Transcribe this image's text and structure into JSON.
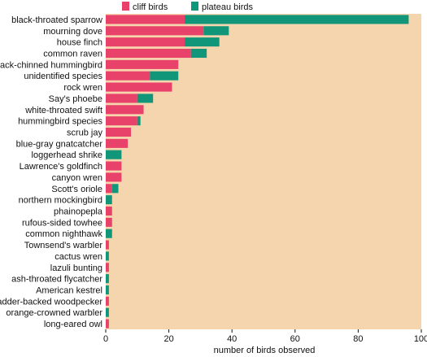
{
  "chart_data": {
    "type": "bar",
    "orientation": "horizontal",
    "stacked": true,
    "xlabel": "number of birds observed",
    "xlim": [
      0,
      100
    ],
    "xticks": [
      0,
      20,
      40,
      60,
      80,
      100
    ],
    "grid": false,
    "legend_position": "top",
    "categories": [
      "black-throated sparrow",
      "mourning dove",
      "house finch",
      "common raven",
      "black-chinned hummingbird",
      "unidentified species",
      "rock wren",
      "Say's phoebe",
      "white-throated swift",
      "hummingbird species",
      "scrub jay",
      "blue-gray gnatcatcher",
      "loggerhead shrike",
      "Lawrence's goldfinch",
      "canyon wren",
      "Scott's oriole",
      "northern mockingbird",
      "phainopepla",
      "rufous-sided towhee",
      "common nighthawk",
      "Townsend's warbler",
      "cactus wren",
      "lazuli bunting",
      "ash-throated flycatcher",
      "American kestrel",
      "ladder-backed woodpecker",
      "orange-crowned warbler",
      "long-eared owl"
    ],
    "series": [
      {
        "name": "cliff birds",
        "color": "#e8416a",
        "values": [
          25,
          31,
          25,
          27,
          23,
          14,
          21,
          10,
          12,
          10,
          8,
          7,
          0,
          5,
          5,
          2,
          0,
          2,
          2,
          0,
          1,
          0,
          1,
          0,
          0,
          1,
          0,
          1
        ]
      },
      {
        "name": "plateau birds",
        "color": "#12967a",
        "values": [
          71,
          8,
          11,
          5,
          0,
          9,
          0,
          5,
          0,
          1,
          0,
          0,
          5,
          0,
          0,
          2,
          2,
          0,
          0,
          2,
          0,
          1,
          0,
          1,
          1,
          0,
          1,
          0
        ]
      }
    ],
    "colors": {
      "plot_background": "#f5d5ae",
      "text": "#111111"
    }
  }
}
